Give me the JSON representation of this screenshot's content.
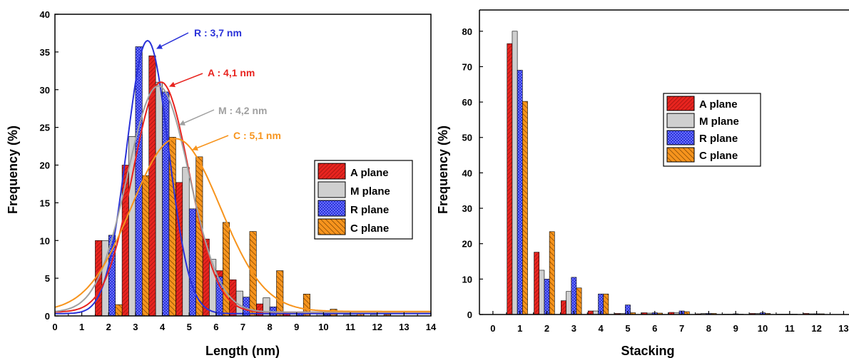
{
  "colors": {
    "A plane": "#e8241f",
    "M plane": "#c8c8c8",
    "R plane": "#2a32d8",
    "C plane": "#f7941d",
    "M curve": "#a0a0a0"
  },
  "chart_data": [
    {
      "type": "bar",
      "xlabel": "Length (nm)",
      "ylabel": "Frequency (%)",
      "xlim": [
        0,
        14
      ],
      "ylim": [
        0,
        40
      ],
      "xticks": [
        "0",
        "1",
        "2",
        "3",
        "4",
        "5",
        "6",
        "7",
        "8",
        "9",
        "10",
        "11",
        "12",
        "13",
        "14"
      ],
      "yticks": [
        "0",
        "5",
        "10",
        "15",
        "20",
        "25",
        "30",
        "35",
        "40"
      ],
      "legend": {
        "position": "right",
        "entries": [
          "A plane",
          "M plane",
          "R plane",
          "C plane"
        ]
      },
      "series": [
        {
          "name": "A plane",
          "x": [
            1.5,
            2.5,
            3.0,
            3.5,
            4.0,
            4.5,
            5.0,
            5.5,
            6.0,
            6.5,
            7.0,
            7.5,
            8.0,
            8.5,
            9.0
          ],
          "values": [
            10,
            20,
            24,
            34.5,
            29.5,
            17.7,
            12.0,
            10.2,
            6.0,
            4.8,
            2.0,
            1.6,
            1.0,
            0.5,
            0.4
          ]
        },
        {
          "name": "M plane",
          "x": [
            2,
            3,
            4,
            5,
            6,
            7,
            8,
            9,
            10,
            11,
            12
          ],
          "values": [
            10,
            23.8,
            31,
            19.7,
            7.5,
            3.3,
            2.4,
            0.4,
            0.3,
            0.2,
            0.2
          ]
        },
        {
          "name": "R plane",
          "x": [
            2,
            3,
            4,
            5,
            6,
            7,
            8,
            9,
            10,
            11
          ],
          "values": [
            10.7,
            35.7,
            29.7,
            14.2,
            5.2,
            2.5,
            1.2,
            0.5,
            0.2,
            0.1
          ]
        },
        {
          "name": "C plane",
          "x": [
            2,
            3,
            4,
            5,
            6,
            7,
            8,
            9,
            10,
            11,
            12
          ],
          "values": [
            1.5,
            18.6,
            23.7,
            21.1,
            12.4,
            11.2,
            6.0,
            2.9,
            0.9,
            0.3,
            0.2
          ]
        }
      ],
      "fits": [
        {
          "name": "R",
          "label": "R : 3,7 nm",
          "mean": 3.45,
          "sigma": 0.78,
          "amp": 36.2,
          "base": 0.3
        },
        {
          "name": "A",
          "label": "A : 4,1 nm",
          "mean": 3.95,
          "sigma": 1.05,
          "amp": 30.5,
          "base": 0.5
        },
        {
          "name": "M",
          "label": "M : 4,2 nm",
          "mean": 3.85,
          "sigma": 1.15,
          "amp": 30.0,
          "base": 0.5
        },
        {
          "name": "C",
          "label": "C : 5,1 nm",
          "mean": 4.5,
          "sigma": 1.65,
          "amp": 22.9,
          "base": 0.6
        }
      ]
    },
    {
      "type": "bar",
      "xlabel": "Stacking",
      "ylabel": "Frequency (%)",
      "xlim": [
        -0.5,
        13.2
      ],
      "ylim": [
        0,
        86
      ],
      "xticks": [
        "0",
        "1",
        "2",
        "3",
        "4",
        "5",
        "6",
        "7",
        "8",
        "9",
        "10",
        "11",
        "12",
        "13"
      ],
      "yticks": [
        "0",
        "10",
        "20",
        "30",
        "40",
        "50",
        "60",
        "70",
        "80"
      ],
      "legend": {
        "position": "center-right",
        "entries": [
          "A plane",
          "M plane",
          "R plane",
          "C plane"
        ]
      },
      "categories": [
        1,
        2,
        3,
        4,
        5,
        6,
        7,
        8,
        9,
        10,
        11,
        12
      ],
      "series": [
        {
          "name": "A plane",
          "values": [
            76.5,
            17.6,
            3.9,
            1.0,
            0.3,
            0.5,
            0.6,
            0.2,
            0.1,
            0.3,
            0.1,
            0.3
          ]
        },
        {
          "name": "M plane",
          "values": [
            80,
            12.5,
            6.5,
            1.0,
            0.3,
            0.4,
            0.5,
            0.3,
            0.1,
            0.3,
            0.1,
            0.2
          ]
        },
        {
          "name": "R plane",
          "values": [
            69,
            10,
            10.5,
            5.8,
            2.7,
            0.5,
            1.0,
            0.3,
            0.2,
            0.5,
            0.1,
            0.2
          ]
        },
        {
          "name": "C plane",
          "values": [
            60.2,
            23.4,
            7.5,
            5.8,
            0.5,
            0.4,
            0.8,
            0.3,
            0.1,
            0.3,
            0.1,
            0.2
          ]
        }
      ]
    }
  ]
}
